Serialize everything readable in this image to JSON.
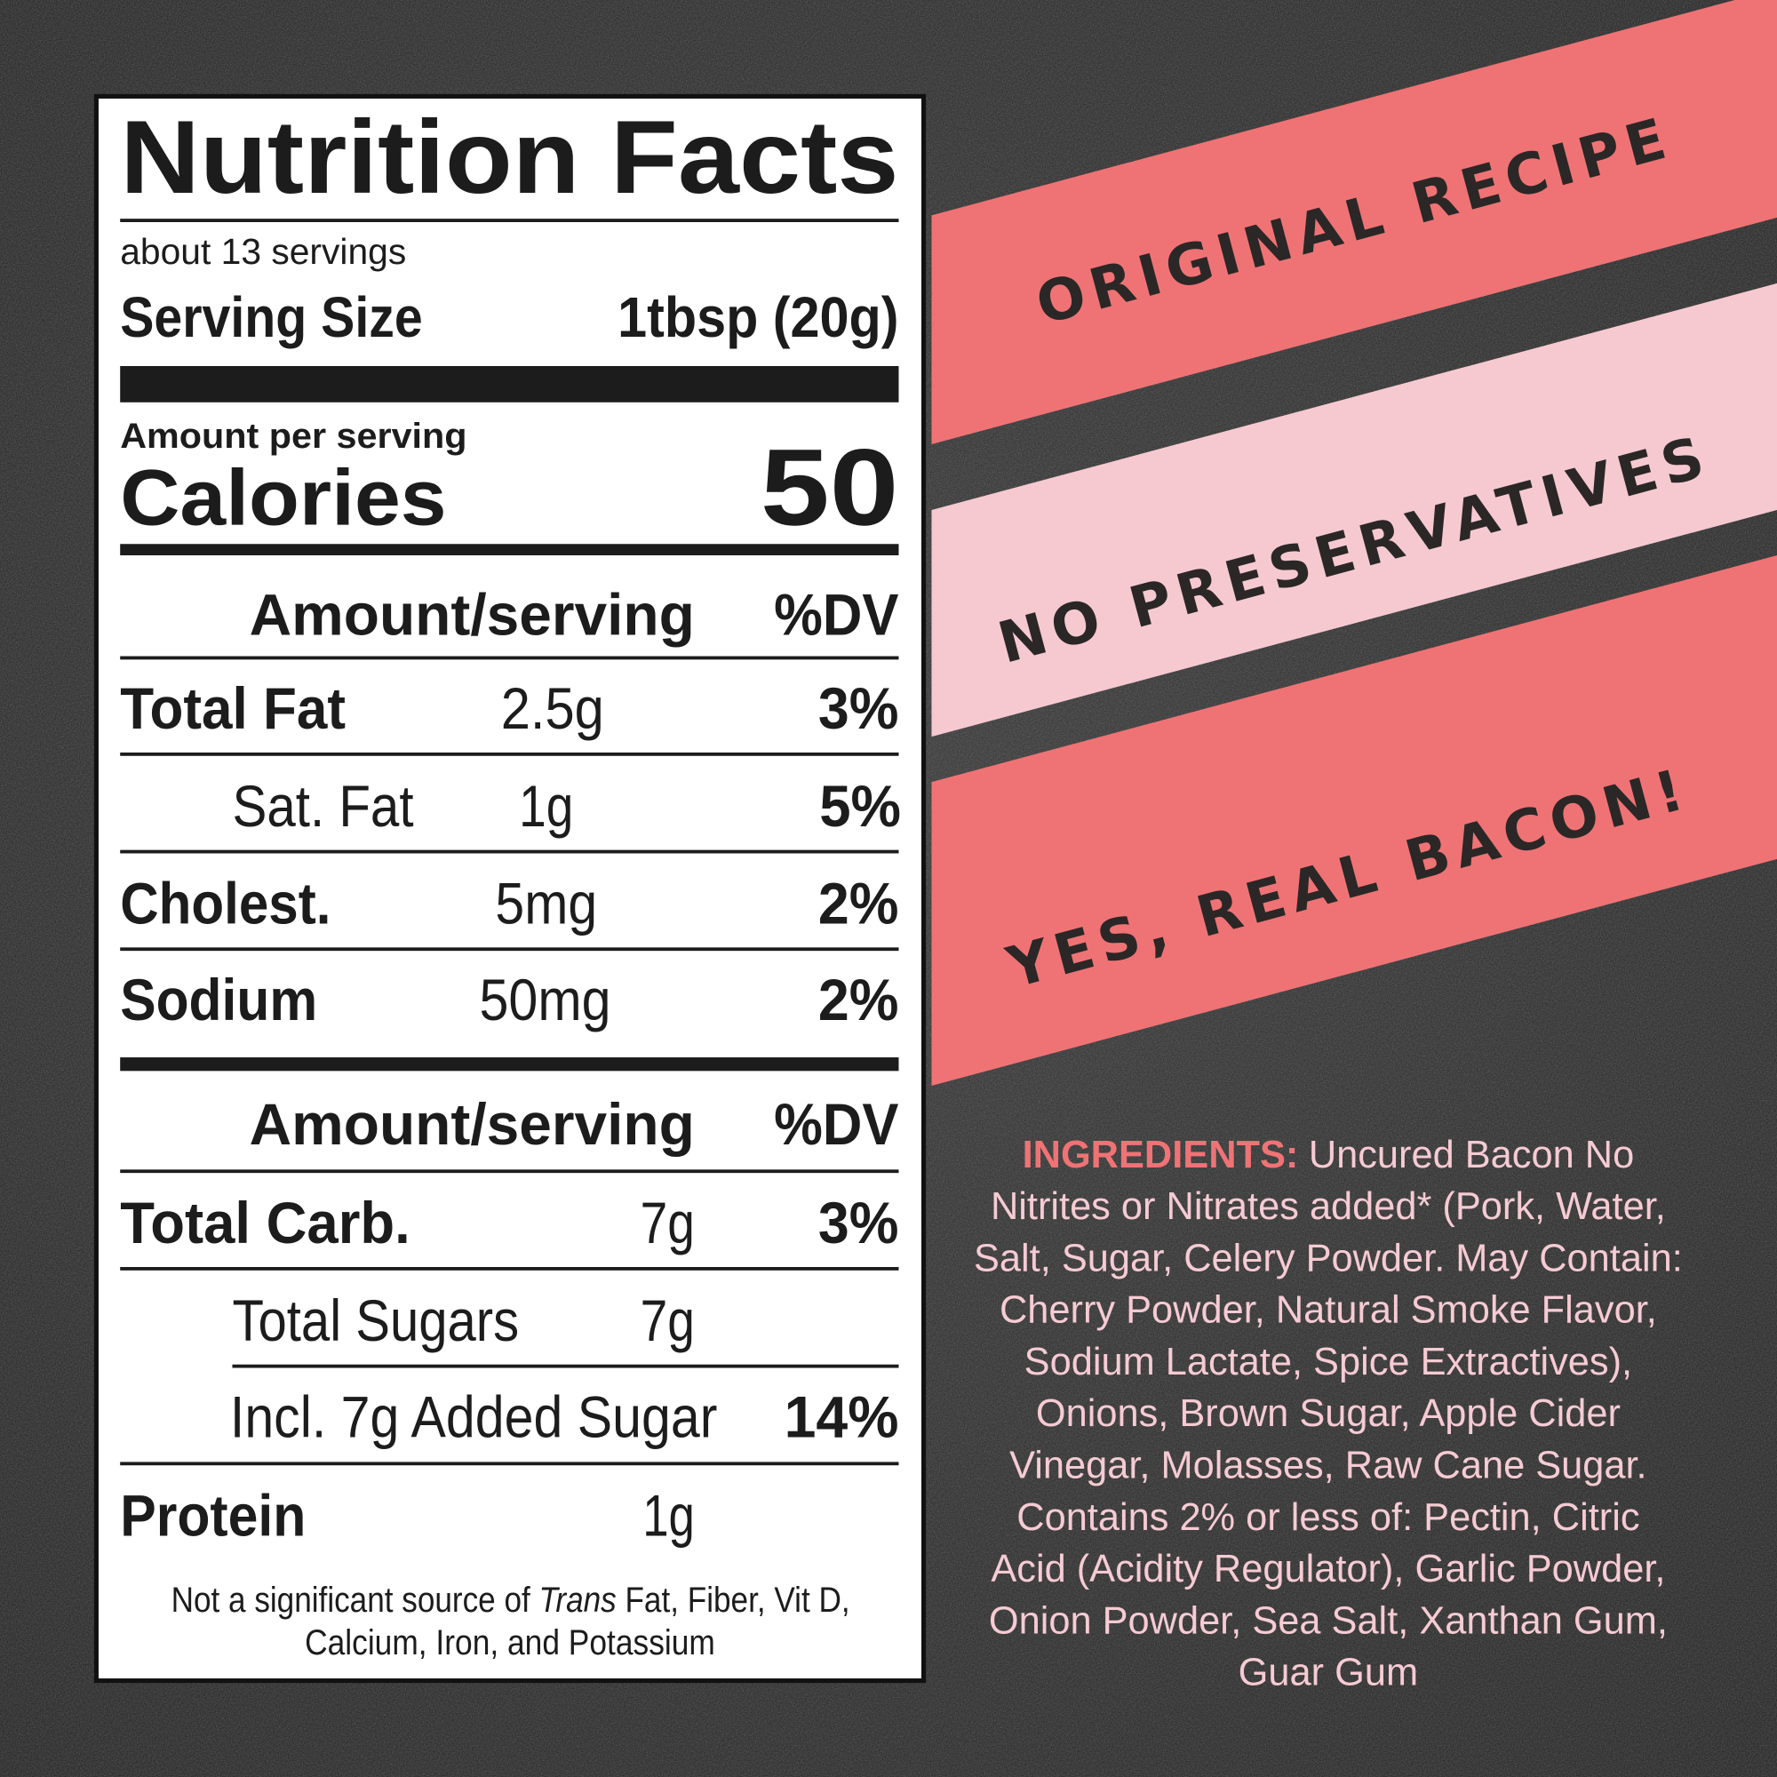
{
  "label": {
    "title": "Nutrition Facts",
    "servings": "about 13 servings",
    "serving_size_label": "Serving Size",
    "serving_size": "1tbsp (20g)",
    "amount_per_serving": "Amount per serving",
    "calories_label": "Calories",
    "calories": "50",
    "column_amount": "Amount/serving",
    "column_dv": "%DV",
    "section1": [
      {
        "name": "Total Fat",
        "amount": "2.5g",
        "dv": "3%"
      },
      {
        "name": "Sat. Fat",
        "amount": "1g",
        "dv": "5%"
      },
      {
        "name": "Cholest.",
        "amount": "5mg",
        "dv": "2%"
      },
      {
        "name": "Sodium",
        "amount": "50mg",
        "dv": "2%"
      }
    ],
    "section2": [
      {
        "name": "Total Carb.",
        "amount": "7g",
        "dv": "3%"
      },
      {
        "name": "Total Sugars",
        "amount": "7g"
      },
      {
        "name": "Incl. 7g Added Sugar",
        "dv": "14%"
      },
      {
        "name": "Protein",
        "amount": "1g"
      }
    ],
    "footnote": [
      "Not a significant source of ",
      "Trans",
      " Fat, Fiber, Vit D,",
      "Calcium, Iron, and Potassium"
    ]
  },
  "banners": [
    "ORIGINAL RECIPE",
    "NO PRESERVATIVES",
    "YES, REAL BACON!"
  ],
  "ingredients": {
    "label": "INGREDIENTS:",
    "lines": [
      "Uncured Bacon No",
      "Nitrites or Nitrates added* (Pork, Water,",
      "Salt, Sugar, Celery Powder. May Contain:",
      "Cherry Powder, Natural Smoke Flavor,",
      "Sodium Lactate, Spice Extractives),",
      "Onions, Brown Sugar, Apple Cider",
      "Vinegar, Molasses, Raw Cane Sugar.",
      "Contains 2% or less of: Pectin, Citric",
      "Acid (Acidity Regulator), Garlic Powder,",
      "Onion Powder, Sea Salt, Xanthan Gum,",
      "Guar Gum"
    ]
  }
}
